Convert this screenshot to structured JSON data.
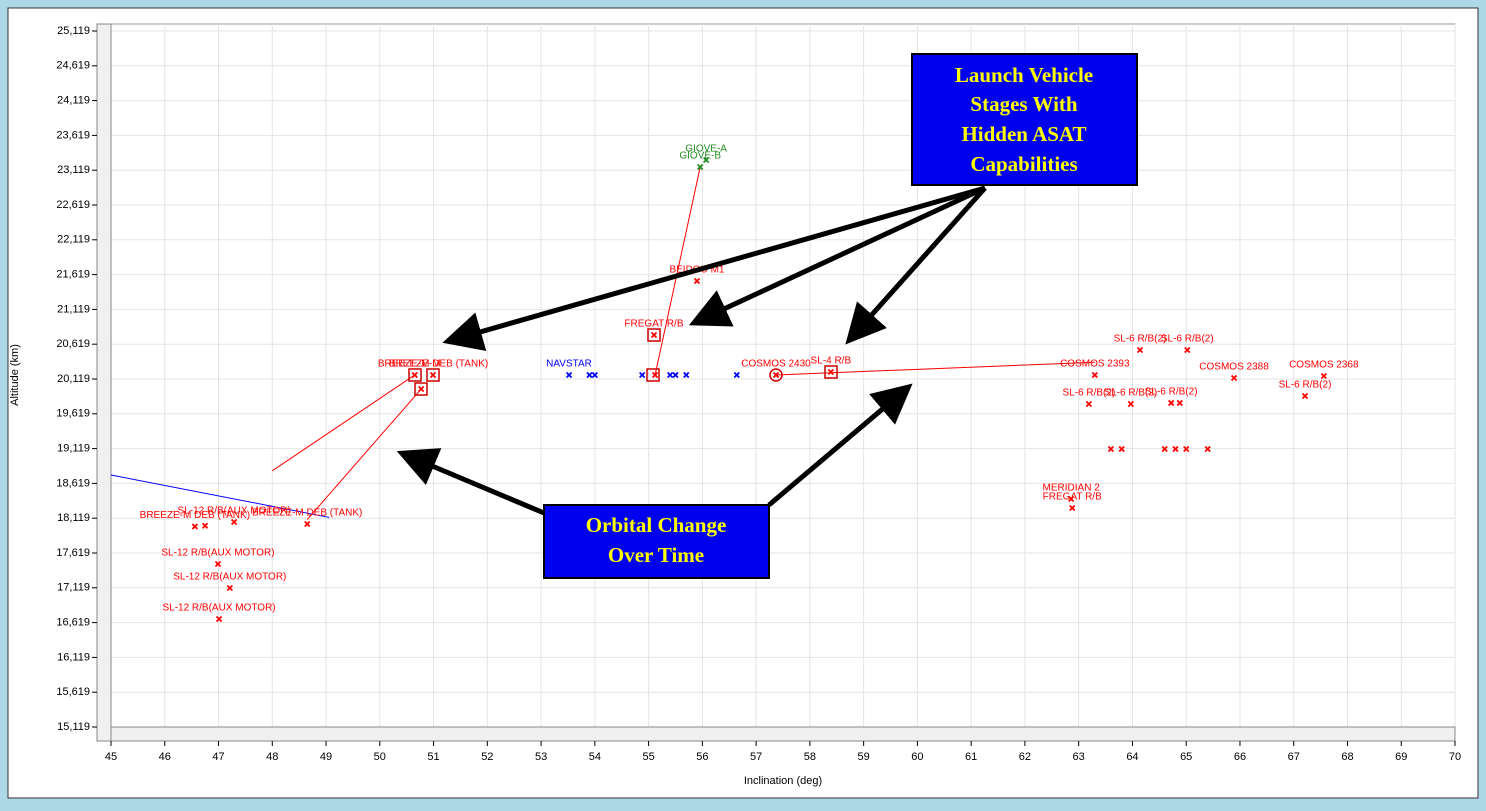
{
  "chart_data": {
    "type": "scatter",
    "x_label": "Inclination (deg)",
    "y_label": "Altitude (km)",
    "xlim": [
      45,
      70
    ],
    "xticks": [
      45,
      46,
      47,
      48,
      49,
      50,
      51,
      52,
      53,
      54,
      55,
      56,
      57,
      58,
      59,
      60,
      61,
      62,
      63,
      64,
      65,
      66,
      67,
      68,
      69,
      70
    ],
    "ylim": [
      15119,
      25119
    ],
    "yticks": [
      {
        "value": 15119,
        "label": "15,119"
      },
      {
        "value": 15619,
        "label": "15,619"
      },
      {
        "value": 16119,
        "label": "16,119"
      },
      {
        "value": 16619,
        "label": "16,619"
      },
      {
        "value": 17119,
        "label": "17,119"
      },
      {
        "value": 17619,
        "label": "17,619"
      },
      {
        "value": 18119,
        "label": "18,119"
      },
      {
        "value": 18619,
        "label": "18,619"
      },
      {
        "value": 19119,
        "label": "19,119"
      },
      {
        "value": 19619,
        "label": "19,619"
      },
      {
        "value": 20119,
        "label": "20,119"
      },
      {
        "value": 20619,
        "label": "20,619"
      },
      {
        "value": 21119,
        "label": "21,119"
      },
      {
        "value": 21619,
        "label": "21,619"
      },
      {
        "value": 22119,
        "label": "22,119"
      },
      {
        "value": 22619,
        "label": "22,619"
      },
      {
        "value": 23119,
        "label": "23,119"
      },
      {
        "value": 23619,
        "label": "23,619"
      },
      {
        "value": 24119,
        "label": "24,119"
      },
      {
        "value": 24619,
        "label": "24,619"
      },
      {
        "value": 25119,
        "label": "25,119"
      }
    ],
    "grid": true,
    "series": [
      {
        "color": "#ff0000",
        "x": [
          55.9,
          55.1,
          55.12,
          58.39,
          57.37,
          50.65,
          50.99,
          50.77,
          48.65,
          47.29,
          46.99,
          47.21,
          47.01,
          46.56,
          46.75,
          67.56,
          67.21,
          65.89,
          62.86,
          62.88,
          63.19,
          63.97,
          64.72,
          64.88,
          64.14,
          65.02,
          63.3,
          63.6,
          63.8,
          64.6,
          64.8,
          65.0,
          65.4
        ],
        "values": [
          21527,
          20751,
          20177,
          20220,
          20177,
          20177,
          20177,
          19975,
          18036,
          18064,
          17461,
          17116,
          16670,
          18000,
          18010,
          20162,
          19875,
          20133,
          18395,
          18266,
          19760,
          19760,
          19775,
          19775,
          20536,
          20536,
          20177,
          19113,
          19113,
          19113,
          19113,
          19113,
          19113
        ],
        "point_labels": [
          "BEIDOU M1",
          "FREGAT R/B",
          null,
          "SL-4 R/B",
          "COSMOS 2430",
          "BREEZE-M",
          "BREEZE-M DEB (TANK)",
          null,
          "BREEZE-M DEB (TANK)",
          "SL-12 R/B(AUX MOTOR)",
          "SL-12 R/B(AUX MOTOR)",
          "SL-12 R/B(AUX MOTOR)",
          "SL-12 R/B(AUX MOTOR)",
          "BREEZE-M DEB (TANK)",
          null,
          "COSMOS 2368",
          "SL-6 R/B(2)",
          "COSMOS 2388",
          "MERIDIAN 2",
          "FREGAT R/B",
          "SL-6 R/B(2)",
          "SL-6 R/B(2)",
          "SL-6 R/B(2)",
          null,
          "SL-6 R/B(2)",
          "SL-6 R/B(2)",
          "COSMOS 2393",
          null,
          null,
          null,
          null,
          null,
          null
        ]
      },
      {
        "color": "#0000ff",
        "x": [
          53.52,
          53.9,
          54.0,
          54.88,
          55.4,
          55.5,
          55.7,
          56.64
        ],
        "values": [
          20177,
          20177,
          20177,
          20177,
          20177,
          20177,
          20177,
          20177
        ],
        "point_labels": [
          "NAVSTAR",
          null,
          null,
          null,
          null,
          null,
          null,
          null
        ]
      },
      {
        "color": "#228b22",
        "x": [
          56.07,
          55.96
        ],
        "values": [
          23266,
          23165
        ],
        "point_labels": [
          "GIOVE-A",
          "GIOVE-B"
        ]
      }
    ],
    "tracks": [
      {
        "color": "#0000ff",
        "x": [
          45,
          49.06
        ],
        "values": [
          18740,
          18130
        ]
      },
      {
        "color": "#ff0000",
        "x": [
          55.96,
          55.12
        ],
        "values": [
          23165,
          20177
        ]
      },
      {
        "color": "#ff0000",
        "x": [
          57.37,
          63.3
        ],
        "values": [
          20177,
          20360
        ]
      },
      {
        "color": "#ff0000",
        "x": [
          48.0,
          50.65
        ],
        "values": [
          18800,
          20177
        ]
      },
      {
        "color": "#ff0000",
        "x": [
          48.65,
          50.77
        ],
        "values": [
          18100,
          19975
        ]
      }
    ],
    "annotations": [
      {
        "lines": [
          "Launch Vehicle",
          "Stages With",
          "Hidden ASAT",
          "Capabilities"
        ]
      },
      {
        "lines": [
          "Orbital Change",
          "Over Time"
        ]
      }
    ]
  }
}
